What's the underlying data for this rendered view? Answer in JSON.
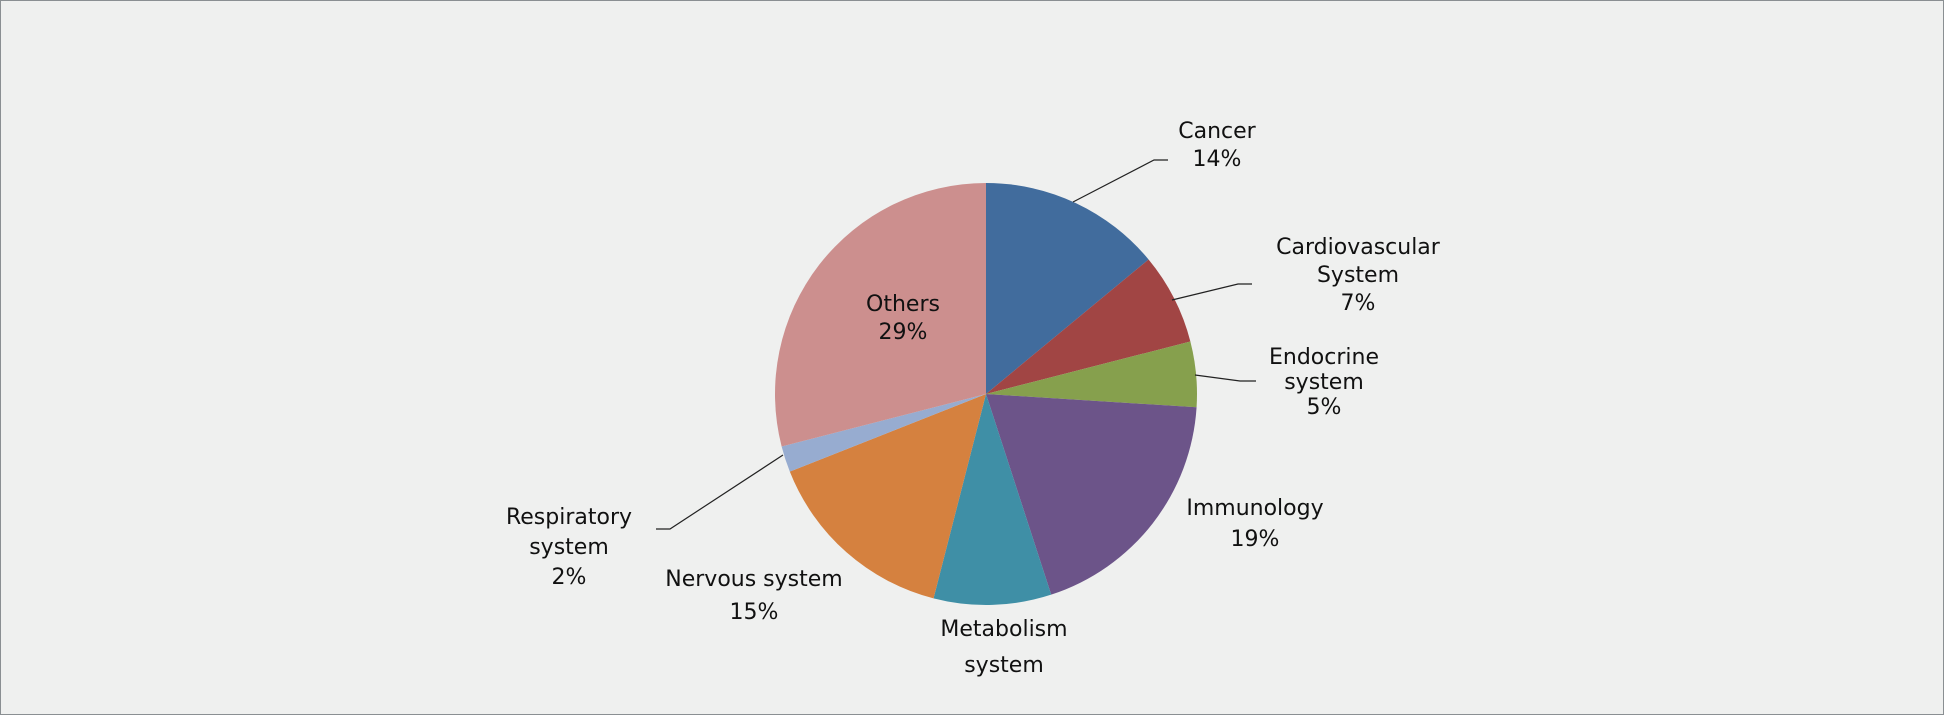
{
  "chart_data": {
    "type": "pie",
    "slices": [
      {
        "name": "Cancer",
        "lines": [
          "Cancer",
          "14%"
        ],
        "value": 14,
        "color": "#416c9d"
      },
      {
        "name": "Cardiovascular System",
        "lines": [
          "Cardiovascular",
          "System",
          "7%"
        ],
        "value": 7,
        "color": "#a14544"
      },
      {
        "name": "Endocrine system",
        "lines": [
          "Endocrine",
          "system",
          "5%"
        ],
        "value": 5,
        "color": "#86a04d"
      },
      {
        "name": "Immunology",
        "lines": [
          "Immunology",
          "19%"
        ],
        "value": 19,
        "color": "#6c5489"
      },
      {
        "name": "Metabolism system",
        "lines": [
          "Metabolism",
          "system"
        ],
        "value": 9,
        "color": "#3f8fa6"
      },
      {
        "name": "Nervous system",
        "lines": [
          "Nervous system",
          "15%"
        ],
        "value": 15,
        "color": "#d5813f"
      },
      {
        "name": "Respiratory system",
        "lines": [
          "Respiratory",
          "system",
          "2%"
        ],
        "value": 2,
        "color": "#97acd0"
      },
      {
        "name": "Others",
        "lines": [
          "Others",
          "29%"
        ],
        "value": 29,
        "color": "#cc8f8e"
      }
    ]
  }
}
